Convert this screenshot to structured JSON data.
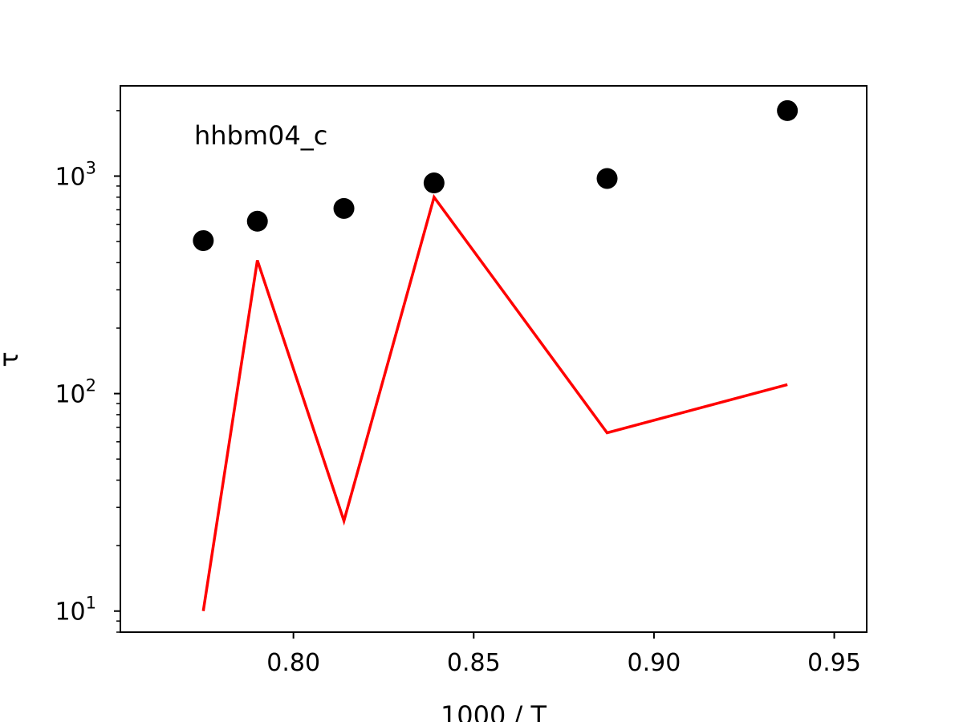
{
  "chart_data": {
    "type": "scatter",
    "title": "",
    "xlabel": "1000 / T",
    "ylabel": "τ",
    "xlim": [
      0.752,
      0.959
    ],
    "ylim": [
      8.0,
      2600
    ],
    "yscale": "log",
    "x_ticks": [
      0.8,
      0.85,
      0.9,
      0.95
    ],
    "x_tick_labels": [
      "0.80",
      "0.85",
      "0.90",
      "0.95"
    ],
    "y_ticks": [
      10,
      100,
      1000
    ],
    "y_tick_labels": [
      {
        "base": "10",
        "exp": "1"
      },
      {
        "base": "10",
        "exp": "2"
      },
      {
        "base": "10",
        "exp": "3"
      }
    ],
    "grid": false,
    "legend": "none",
    "annotation": "hhbm04_c",
    "series": [
      {
        "kind": "scatter",
        "color": "#000000",
        "x": [
          0.775,
          0.79,
          0.814,
          0.839,
          0.887,
          0.937
        ],
        "y": [
          505,
          620,
          710,
          930,
          975,
          2000
        ]
      },
      {
        "kind": "line",
        "color": "#ff0000",
        "x": [
          0.775,
          0.79,
          0.814,
          0.839,
          0.887,
          0.937
        ],
        "y": [
          10,
          410,
          26,
          800,
          66,
          110
        ]
      }
    ]
  }
}
